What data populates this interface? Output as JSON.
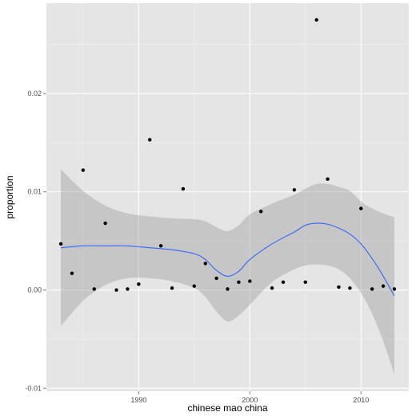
{
  "chart_data": {
    "type": "scatter",
    "title": "",
    "xlabel": "chinese mao china",
    "ylabel": "proportion",
    "xlim": [
      1981.7,
      2014.3
    ],
    "ylim": [
      -0.0103,
      0.0292
    ],
    "grid": true,
    "x_ticks": [
      1990,
      2000,
      2010
    ],
    "x_tick_labels": [
      "1990",
      "2000",
      "2010"
    ],
    "y_ticks": [
      -0.01,
      0.0,
      0.01,
      0.02
    ],
    "y_tick_labels": [
      "-0.01",
      "0.00",
      "0.01",
      "0.02"
    ],
    "colors": {
      "panel": "#e5e5e5",
      "grid_major": "#ffffff",
      "grid_minor": "#f2f2f2",
      "points": "#000000",
      "smooth_line": "#3366ff",
      "ribbon": "#999999"
    },
    "points": [
      {
        "x": 1983,
        "y": 0.0047
      },
      {
        "x": 1984,
        "y": 0.0017
      },
      {
        "x": 1985,
        "y": 0.0122
      },
      {
        "x": 1986,
        "y": 0.0001
      },
      {
        "x": 1987,
        "y": 0.0068
      },
      {
        "x": 1988,
        "y": 0.0
      },
      {
        "x": 1989,
        "y": 0.0001
      },
      {
        "x": 1990,
        "y": 0.0006
      },
      {
        "x": 1991,
        "y": 0.0153
      },
      {
        "x": 1992,
        "y": 0.0045
      },
      {
        "x": 1993,
        "y": 0.0002
      },
      {
        "x": 1994,
        "y": 0.0103
      },
      {
        "x": 1995,
        "y": 0.0004
      },
      {
        "x": 1996,
        "y": 0.0027
      },
      {
        "x": 1997,
        "y": 0.0012
      },
      {
        "x": 1998,
        "y": 0.0001
      },
      {
        "x": 1999,
        "y": 0.0008
      },
      {
        "x": 2000,
        "y": 0.0009
      },
      {
        "x": 2001,
        "y": 0.008
      },
      {
        "x": 2002,
        "y": 0.0002
      },
      {
        "x": 2003,
        "y": 0.0008
      },
      {
        "x": 2004,
        "y": 0.0102
      },
      {
        "x": 2005,
        "y": 0.0008
      },
      {
        "x": 2006,
        "y": 0.0275
      },
      {
        "x": 2007,
        "y": 0.0113
      },
      {
        "x": 2008,
        "y": 0.0003
      },
      {
        "x": 2009,
        "y": 0.0002
      },
      {
        "x": 2010,
        "y": 0.0083
      },
      {
        "x": 2011,
        "y": 0.0001
      },
      {
        "x": 2012,
        "y": 0.0004
      },
      {
        "x": 2013,
        "y": 0.0001
      }
    ],
    "smooth": {
      "x": [
        1983,
        1985,
        1987,
        1989,
        1991,
        1993,
        1995,
        1996,
        1997,
        1998,
        1999,
        2000,
        2002,
        2004,
        2005,
        2006,
        2007,
        2008,
        2009,
        2010,
        2011,
        2012,
        2013
      ],
      "y": [
        0.0043,
        0.0045,
        0.0045,
        0.0045,
        0.0043,
        0.0041,
        0.0037,
        0.0031,
        0.002,
        0.0014,
        0.0019,
        0.0031,
        0.0047,
        0.0059,
        0.0066,
        0.0068,
        0.0067,
        0.0063,
        0.0057,
        0.0047,
        0.0032,
        0.0014,
        -0.0006
      ],
      "lower": [
        -0.0037,
        -0.0011,
        0.0005,
        0.0012,
        0.0012,
        0.0009,
        0.0002,
        -0.0007,
        -0.0022,
        -0.0032,
        -0.0026,
        -0.0015,
        0.0008,
        0.0021,
        0.0025,
        0.0026,
        0.0025,
        0.0021,
        0.0012,
        -0.0003,
        -0.0024,
        -0.0052,
        -0.0086
      ],
      "upper": [
        0.0123,
        0.0101,
        0.0086,
        0.0078,
        0.0075,
        0.0073,
        0.0072,
        0.007,
        0.0064,
        0.006,
        0.0066,
        0.0077,
        0.0088,
        0.0097,
        0.0103,
        0.0108,
        0.0108,
        0.0105,
        0.0101,
        0.009,
        0.0083,
        0.0078,
        0.0074
      ]
    }
  }
}
